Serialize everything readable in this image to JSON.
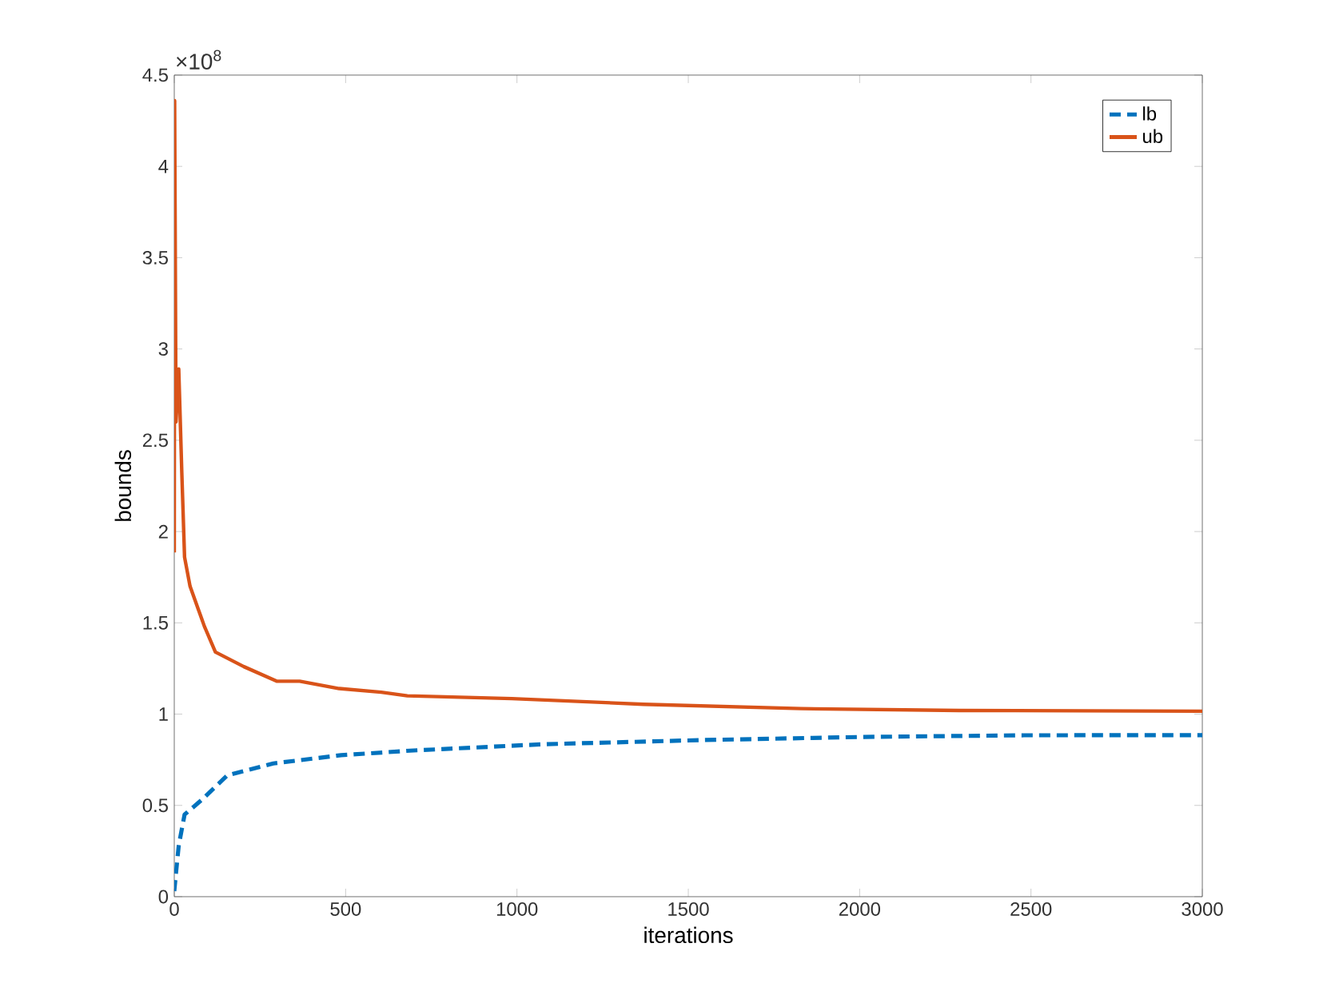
{
  "chart_data": {
    "type": "line",
    "xlabel": "iterations",
    "ylabel": "bounds",
    "annotations": [
      "×10$^{8}$"
    ],
    "xlim": [
      0,
      3000
    ],
    "xticks": [
      0,
      500,
      1000,
      1500,
      2000,
      2500,
      3000
    ],
    "ylim": [
      0,
      4.5
    ],
    "yticks": [
      0,
      0.5,
      1,
      1.5,
      2,
      2.5,
      3,
      3.5,
      4,
      4.5
    ],
    "legend": "top right",
    "marker": "none",
    "grid": false,
    "series": [
      {
        "name": "lb",
        "color": "#0072bd",
        "line_style": "dashed",
        "x": [
          0,
          5,
          13,
          30,
          80,
          155,
          289,
          487,
          609,
          688,
          1077,
          1544,
          2012,
          2480,
          3000
        ],
        "values": [
          0.03,
          0.13,
          0.28,
          0.45,
          0.53,
          0.665,
          0.73,
          0.775,
          0.79,
          0.8,
          0.835,
          0.858,
          0.875,
          0.884,
          0.885
        ]
      },
      {
        "name": "ub",
        "color": "#d95319",
        "line_style": "solid",
        "x": [
          0,
          1,
          5,
          13,
          22,
          30,
          46,
          88,
          120,
          203,
          300,
          366,
          481,
          604,
          680,
          985,
          1369,
          1830,
          2291,
          3000
        ],
        "values": [
          1.885,
          4.36,
          2.6,
          2.89,
          2.32,
          1.86,
          1.7,
          1.48,
          1.34,
          1.26,
          1.18,
          1.18,
          1.14,
          1.12,
          1.1,
          1.085,
          1.054,
          1.03,
          1.02,
          1.016
        ]
      }
    ]
  }
}
